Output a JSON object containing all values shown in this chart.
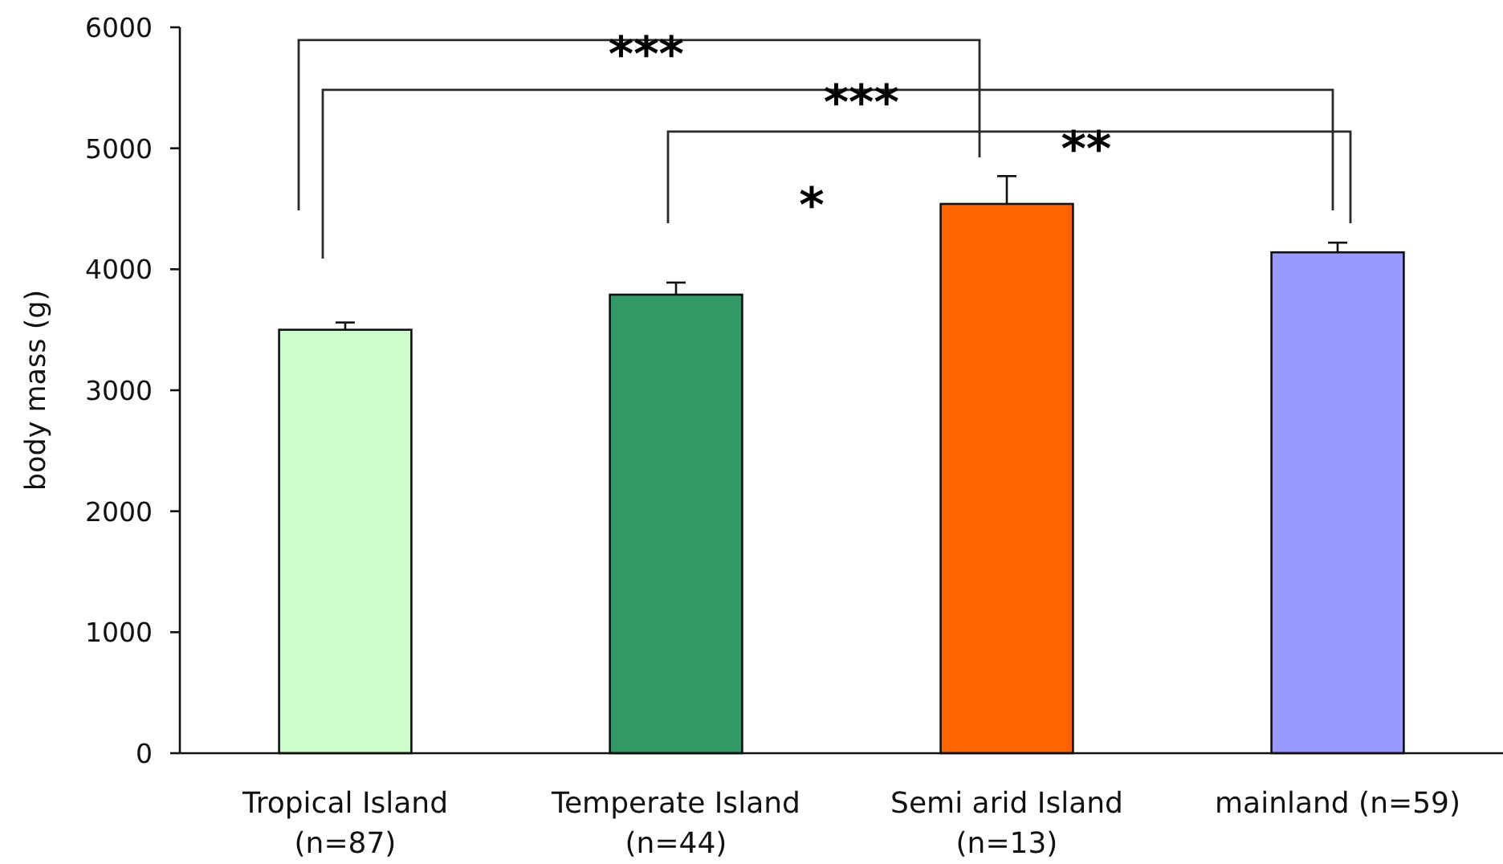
{
  "chart_data": {
    "type": "bar",
    "ylabel": "body mass (g)",
    "categories": [
      "Tropical Island\n(n=87)",
      "Temperate Island\n(n=44)",
      "Semi arid Island\n(n=13)",
      "mainland (n=59)"
    ],
    "values": [
      3500,
      3790,
      4540,
      4140
    ],
    "colors": [
      "#ccffcc",
      "#339966",
      "#ff6600",
      "#9999ff"
    ],
    "errors": [
      [
        3500,
        3560
      ],
      [
        3790,
        3890
      ],
      [
        4540,
        4770
      ],
      [
        4140,
        4220
      ]
    ],
    "ylim": [
      0,
      6000
    ],
    "yticks": [
      0,
      1000,
      2000,
      3000,
      4000,
      5000,
      6000
    ],
    "annotations": [
      "***",
      "***",
      "**",
      "*"
    ]
  }
}
